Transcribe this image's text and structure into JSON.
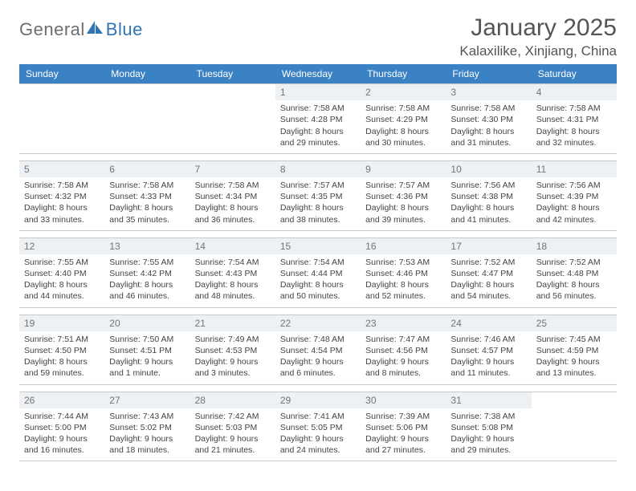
{
  "logo": {
    "text_a": "General",
    "text_b": "Blue"
  },
  "colors": {
    "header_bg": "#3b82c4",
    "daynum_band": "#eef1f3",
    "border": "#c9c9c9",
    "text": "#444444",
    "title": "#555555",
    "logo_gray": "#6e6e6e",
    "logo_blue": "#2f74b5"
  },
  "title": "January 2025",
  "location": "Kalaxilike, Xinjiang, China",
  "days_of_week": [
    "Sunday",
    "Monday",
    "Tuesday",
    "Wednesday",
    "Thursday",
    "Friday",
    "Saturday"
  ],
  "weeks": [
    [
      {
        "n": "",
        "lines": []
      },
      {
        "n": "",
        "lines": []
      },
      {
        "n": "",
        "lines": []
      },
      {
        "n": "1",
        "lines": [
          "Sunrise: 7:58 AM",
          "Sunset: 4:28 PM",
          "Daylight: 8 hours",
          "and 29 minutes."
        ]
      },
      {
        "n": "2",
        "lines": [
          "Sunrise: 7:58 AM",
          "Sunset: 4:29 PM",
          "Daylight: 8 hours",
          "and 30 minutes."
        ]
      },
      {
        "n": "3",
        "lines": [
          "Sunrise: 7:58 AM",
          "Sunset: 4:30 PM",
          "Daylight: 8 hours",
          "and 31 minutes."
        ]
      },
      {
        "n": "4",
        "lines": [
          "Sunrise: 7:58 AM",
          "Sunset: 4:31 PM",
          "Daylight: 8 hours",
          "and 32 minutes."
        ]
      }
    ],
    [
      {
        "n": "5",
        "lines": [
          "Sunrise: 7:58 AM",
          "Sunset: 4:32 PM",
          "Daylight: 8 hours",
          "and 33 minutes."
        ]
      },
      {
        "n": "6",
        "lines": [
          "Sunrise: 7:58 AM",
          "Sunset: 4:33 PM",
          "Daylight: 8 hours",
          "and 35 minutes."
        ]
      },
      {
        "n": "7",
        "lines": [
          "Sunrise: 7:58 AM",
          "Sunset: 4:34 PM",
          "Daylight: 8 hours",
          "and 36 minutes."
        ]
      },
      {
        "n": "8",
        "lines": [
          "Sunrise: 7:57 AM",
          "Sunset: 4:35 PM",
          "Daylight: 8 hours",
          "and 38 minutes."
        ]
      },
      {
        "n": "9",
        "lines": [
          "Sunrise: 7:57 AM",
          "Sunset: 4:36 PM",
          "Daylight: 8 hours",
          "and 39 minutes."
        ]
      },
      {
        "n": "10",
        "lines": [
          "Sunrise: 7:56 AM",
          "Sunset: 4:38 PM",
          "Daylight: 8 hours",
          "and 41 minutes."
        ]
      },
      {
        "n": "11",
        "lines": [
          "Sunrise: 7:56 AM",
          "Sunset: 4:39 PM",
          "Daylight: 8 hours",
          "and 42 minutes."
        ]
      }
    ],
    [
      {
        "n": "12",
        "lines": [
          "Sunrise: 7:55 AM",
          "Sunset: 4:40 PM",
          "Daylight: 8 hours",
          "and 44 minutes."
        ]
      },
      {
        "n": "13",
        "lines": [
          "Sunrise: 7:55 AM",
          "Sunset: 4:42 PM",
          "Daylight: 8 hours",
          "and 46 minutes."
        ]
      },
      {
        "n": "14",
        "lines": [
          "Sunrise: 7:54 AM",
          "Sunset: 4:43 PM",
          "Daylight: 8 hours",
          "and 48 minutes."
        ]
      },
      {
        "n": "15",
        "lines": [
          "Sunrise: 7:54 AM",
          "Sunset: 4:44 PM",
          "Daylight: 8 hours",
          "and 50 minutes."
        ]
      },
      {
        "n": "16",
        "lines": [
          "Sunrise: 7:53 AM",
          "Sunset: 4:46 PM",
          "Daylight: 8 hours",
          "and 52 minutes."
        ]
      },
      {
        "n": "17",
        "lines": [
          "Sunrise: 7:52 AM",
          "Sunset: 4:47 PM",
          "Daylight: 8 hours",
          "and 54 minutes."
        ]
      },
      {
        "n": "18",
        "lines": [
          "Sunrise: 7:52 AM",
          "Sunset: 4:48 PM",
          "Daylight: 8 hours",
          "and 56 minutes."
        ]
      }
    ],
    [
      {
        "n": "19",
        "lines": [
          "Sunrise: 7:51 AM",
          "Sunset: 4:50 PM",
          "Daylight: 8 hours",
          "and 59 minutes."
        ]
      },
      {
        "n": "20",
        "lines": [
          "Sunrise: 7:50 AM",
          "Sunset: 4:51 PM",
          "Daylight: 9 hours",
          "and 1 minute."
        ]
      },
      {
        "n": "21",
        "lines": [
          "Sunrise: 7:49 AM",
          "Sunset: 4:53 PM",
          "Daylight: 9 hours",
          "and 3 minutes."
        ]
      },
      {
        "n": "22",
        "lines": [
          "Sunrise: 7:48 AM",
          "Sunset: 4:54 PM",
          "Daylight: 9 hours",
          "and 6 minutes."
        ]
      },
      {
        "n": "23",
        "lines": [
          "Sunrise: 7:47 AM",
          "Sunset: 4:56 PM",
          "Daylight: 9 hours",
          "and 8 minutes."
        ]
      },
      {
        "n": "24",
        "lines": [
          "Sunrise: 7:46 AM",
          "Sunset: 4:57 PM",
          "Daylight: 9 hours",
          "and 11 minutes."
        ]
      },
      {
        "n": "25",
        "lines": [
          "Sunrise: 7:45 AM",
          "Sunset: 4:59 PM",
          "Daylight: 9 hours",
          "and 13 minutes."
        ]
      }
    ],
    [
      {
        "n": "26",
        "lines": [
          "Sunrise: 7:44 AM",
          "Sunset: 5:00 PM",
          "Daylight: 9 hours",
          "and 16 minutes."
        ]
      },
      {
        "n": "27",
        "lines": [
          "Sunrise: 7:43 AM",
          "Sunset: 5:02 PM",
          "Daylight: 9 hours",
          "and 18 minutes."
        ]
      },
      {
        "n": "28",
        "lines": [
          "Sunrise: 7:42 AM",
          "Sunset: 5:03 PM",
          "Daylight: 9 hours",
          "and 21 minutes."
        ]
      },
      {
        "n": "29",
        "lines": [
          "Sunrise: 7:41 AM",
          "Sunset: 5:05 PM",
          "Daylight: 9 hours",
          "and 24 minutes."
        ]
      },
      {
        "n": "30",
        "lines": [
          "Sunrise: 7:39 AM",
          "Sunset: 5:06 PM",
          "Daylight: 9 hours",
          "and 27 minutes."
        ]
      },
      {
        "n": "31",
        "lines": [
          "Sunrise: 7:38 AM",
          "Sunset: 5:08 PM",
          "Daylight: 9 hours",
          "and 29 minutes."
        ]
      },
      {
        "n": "",
        "lines": []
      }
    ]
  ]
}
